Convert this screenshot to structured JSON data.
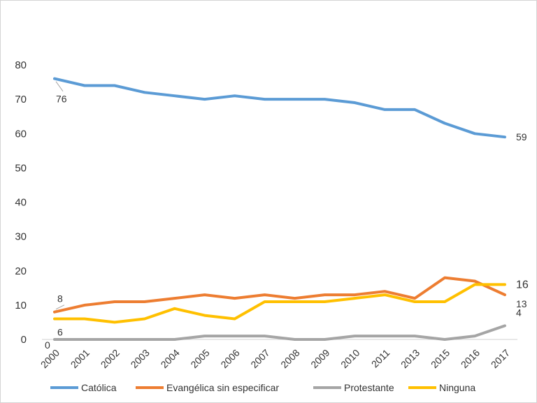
{
  "chart_data": {
    "type": "line",
    "title": "",
    "xlabel": "",
    "ylabel": "",
    "categories": [
      "2000",
      "2001",
      "2002",
      "2003",
      "2004",
      "2005",
      "2006",
      "2007",
      "2008",
      "2009",
      "2010",
      "2011",
      "2013",
      "2015",
      "2016",
      "2017"
    ],
    "ylim": [
      0,
      80
    ],
    "yticks": [
      "0",
      "10",
      "20",
      "30",
      "40",
      "50",
      "60",
      "70",
      "80"
    ],
    "grid": false,
    "legend_position": "bottom",
    "series": [
      {
        "name": "Católica",
        "color": "#5b9bd5",
        "values": [
          76,
          74,
          74,
          72,
          71,
          70,
          71,
          70,
          70,
          70,
          69,
          67,
          67,
          63,
          60,
          59
        ]
      },
      {
        "name": "Evangélica sin especificar",
        "color": "#ed7d31",
        "values": [
          8,
          10,
          11,
          11,
          12,
          13,
          12,
          13,
          12,
          13,
          13,
          14,
          12,
          18,
          17,
          13
        ]
      },
      {
        "name": "Protestante",
        "color": "#a5a5a5",
        "values": [
          0,
          0,
          0,
          0,
          0,
          1,
          1,
          1,
          0,
          0,
          1,
          1,
          1,
          0,
          1,
          4
        ]
      },
      {
        "name": "Ninguna",
        "color": "#ffc000",
        "values": [
          6,
          6,
          5,
          6,
          9,
          7,
          6,
          11,
          11,
          11,
          12,
          13,
          11,
          11,
          16,
          16
        ]
      }
    ],
    "data_labels": [
      {
        "series": 0,
        "index": 0,
        "text": "76"
      },
      {
        "series": 0,
        "index": 15,
        "text": "59"
      },
      {
        "series": 1,
        "index": 0,
        "text": "8"
      },
      {
        "series": 1,
        "index": 15,
        "text": "13"
      },
      {
        "series": 2,
        "index": 0,
        "text": "0"
      },
      {
        "series": 2,
        "index": 15,
        "text": "4"
      },
      {
        "series": 3,
        "index": 0,
        "text": "6"
      },
      {
        "series": 3,
        "index": 15,
        "text": "16"
      }
    ]
  }
}
